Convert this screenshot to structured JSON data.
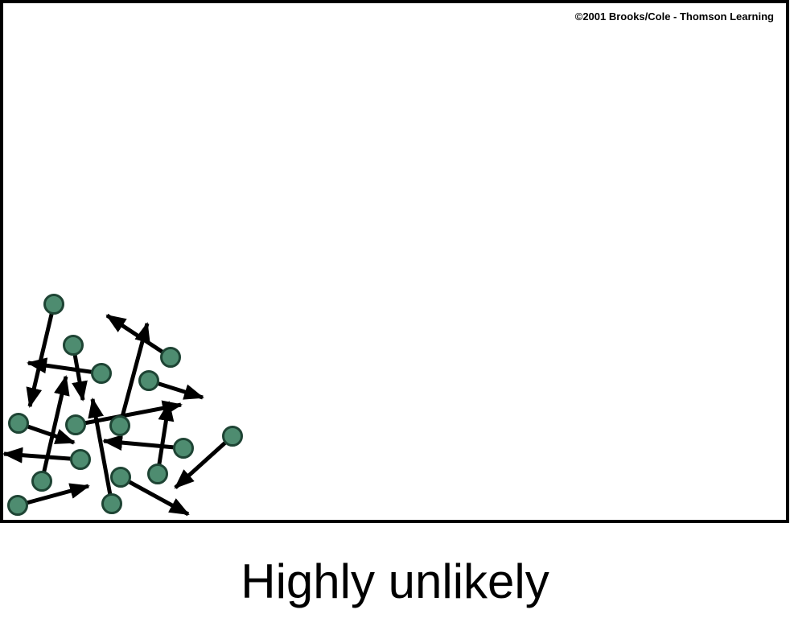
{
  "copyright": "©2001 Brooks/Cole - Thomson Learning",
  "caption": "Highly unlikely",
  "colors": {
    "molecule_fill": "#4e8c70",
    "molecule_stroke": "#1e4434",
    "arrow": "#000000",
    "box": "#000000"
  },
  "icons": {
    "molecule": "molecule-icon",
    "velocity": "velocity-arrow"
  }
}
